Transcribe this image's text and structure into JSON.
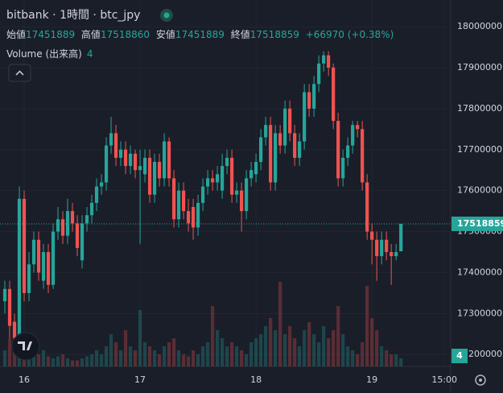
{
  "chart_data": {
    "type": "candlestick",
    "title": "bitbank · 1時間 · btc_jpy",
    "ohlc_names": {
      "open": "始値",
      "high": "高値",
      "low": "安値",
      "close": "終値"
    },
    "change": "+66970 (+0.38%)",
    "volume_name": "Volume (出来高)",
    "x": [
      -4,
      -3,
      -2,
      -1,
      0,
      1,
      2,
      3,
      4,
      5,
      6,
      7,
      8,
      9,
      10,
      11,
      12,
      13,
      14,
      15,
      16,
      17,
      18,
      19,
      20,
      21,
      22,
      23,
      24,
      25,
      26,
      27,
      28,
      29,
      30,
      31,
      32,
      33,
      34,
      35,
      36,
      37,
      38,
      39,
      40,
      41,
      42,
      43,
      44,
      45,
      46,
      47,
      48,
      49,
      50,
      51,
      52,
      53,
      54,
      55,
      56,
      57,
      58,
      59,
      60,
      61,
      62,
      63,
      64,
      65,
      66,
      67,
      68,
      69,
      70,
      71,
      72,
      73,
      74,
      75,
      76,
      77,
      78
    ],
    "open": [
      17330000,
      17360000,
      17280000,
      17240000,
      17580000,
      17350000,
      17420000,
      17480000,
      17380000,
      17450000,
      17370000,
      17500000,
      17530000,
      17490000,
      17550000,
      17520000,
      17430000,
      17520000,
      17540000,
      17570000,
      17610000,
      17620000,
      17710000,
      17740000,
      17680000,
      17700000,
      17660000,
      17690000,
      17650000,
      17640000,
      17680000,
      17590000,
      17670000,
      17630000,
      17720000,
      17630000,
      17530000,
      17600000,
      17550000,
      17560000,
      17510000,
      17570000,
      17610000,
      17630000,
      17620000,
      17600000,
      17660000,
      17680000,
      17590000,
      17600000,
      17550000,
      17630000,
      17640000,
      17670000,
      17730000,
      17760000,
      17620000,
      17740000,
      17710000,
      17800000,
      17740000,
      17680000,
      17720000,
      17840000,
      17800000,
      17860000,
      17910000,
      17930000,
      17900000,
      17770000,
      17630000,
      17680000,
      17710000,
      17760000,
      17750000,
      17620000,
      17500000,
      17480000,
      17440000,
      17480000,
      17450000,
      17440000,
      17451889
    ],
    "high": [
      17380000,
      17380000,
      17300000,
      17610000,
      17600000,
      17450000,
      17500000,
      17500000,
      17470000,
      17470000,
      17520000,
      17560000,
      17550000,
      17580000,
      17570000,
      17540000,
      17540000,
      17560000,
      17590000,
      17630000,
      17640000,
      17730000,
      17780000,
      17760000,
      17720000,
      17720000,
      17710000,
      17700000,
      17700000,
      17700000,
      17700000,
      17690000,
      17690000,
      17740000,
      17730000,
      17650000,
      17620000,
      17620000,
      17580000,
      17580000,
      17590000,
      17630000,
      17650000,
      17650000,
      17660000,
      17690000,
      17700000,
      17700000,
      17620000,
      17620000,
      17650000,
      17670000,
      17690000,
      17750000,
      17780000,
      17780000,
      17760000,
      17760000,
      17820000,
      17820000,
      17760000,
      17740000,
      17860000,
      17860000,
      17880000,
      17930000,
      17940000,
      17940000,
      17910000,
      17790000,
      17700000,
      17730000,
      17770000,
      17770000,
      17770000,
      17640000,
      17520000,
      17500000,
      17500000,
      17500000,
      17470000,
      17470000,
      17518860
    ],
    "low": [
      17300000,
      17240000,
      17200000,
      17220000,
      17330000,
      17330000,
      17400000,
      17380000,
      17360000,
      17350000,
      17360000,
      17480000,
      17470000,
      17470000,
      17500000,
      17440000,
      17410000,
      17500000,
      17520000,
      17550000,
      17590000,
      17600000,
      17690000,
      17660000,
      17660000,
      17640000,
      17640000,
      17630000,
      17470000,
      17620000,
      17570000,
      17570000,
      17610000,
      17610000,
      17610000,
      17510000,
      17510000,
      17530000,
      17500000,
      17480000,
      17490000,
      17550000,
      17590000,
      17600000,
      17600000,
      17580000,
      17640000,
      17570000,
      17570000,
      17500000,
      17530000,
      17610000,
      17620000,
      17650000,
      17710000,
      17600000,
      17600000,
      17690000,
      17690000,
      17720000,
      17660000,
      17660000,
      17700000,
      17780000,
      17780000,
      17840000,
      17890000,
      17880000,
      17750000,
      17610000,
      17610000,
      17660000,
      17690000,
      17730000,
      17600000,
      17480000,
      17420000,
      17380000,
      17420000,
      17430000,
      17370000,
      17430000,
      17451889
    ],
    "close": [
      17360000,
      17270000,
      17240000,
      17580000,
      17350000,
      17420000,
      17480000,
      17400000,
      17450000,
      17370000,
      17500000,
      17530000,
      17490000,
      17550000,
      17520000,
      17460000,
      17520000,
      17540000,
      17570000,
      17610000,
      17620000,
      17710000,
      17740000,
      17680000,
      17700000,
      17660000,
      17690000,
      17650000,
      17660000,
      17680000,
      17590000,
      17670000,
      17630000,
      17720000,
      17630000,
      17530000,
      17600000,
      17550000,
      17520000,
      17510000,
      17570000,
      17610000,
      17630000,
      17620000,
      17640000,
      17660000,
      17680000,
      17590000,
      17600000,
      17550000,
      17630000,
      17650000,
      17670000,
      17730000,
      17760000,
      17620000,
      17740000,
      17710000,
      17800000,
      17740000,
      17680000,
      17720000,
      17840000,
      17800000,
      17860000,
      17910000,
      17930000,
      17900000,
      17770000,
      17630000,
      17680000,
      17710000,
      17760000,
      17750000,
      17620000,
      17500000,
      17480000,
      17440000,
      17480000,
      17450000,
      17440000,
      17450000,
      17518859
    ],
    "volume": [
      8,
      14,
      12,
      20,
      10,
      6,
      5,
      6,
      8,
      5,
      4,
      5,
      6,
      4,
      3,
      3,
      4,
      5,
      6,
      8,
      6,
      10,
      16,
      12,
      8,
      18,
      10,
      8,
      28,
      12,
      10,
      8,
      6,
      10,
      12,
      14,
      8,
      6,
      5,
      8,
      6,
      10,
      12,
      30,
      18,
      14,
      10,
      12,
      10,
      8,
      6,
      12,
      14,
      16,
      20,
      24,
      18,
      42,
      16,
      20,
      14,
      10,
      18,
      22,
      16,
      12,
      20,
      14,
      18,
      30,
      16,
      10,
      8,
      6,
      12,
      40,
      24,
      18,
      10,
      8,
      6,
      6,
      4
    ],
    "up_color": "#26a69a",
    "down_color": "#ef5350",
    "xlim": [
      -5,
      88.3
    ],
    "xticks": [
      {
        "value": 0,
        "label": "16"
      },
      {
        "value": 24,
        "label": "17"
      },
      {
        "value": 48,
        "label": "18"
      },
      {
        "value": 72,
        "label": "19"
      },
      {
        "value": 87,
        "label": "15:00"
      }
    ],
    "ylim": [
      17171000,
      18065000
    ],
    "yticks": [
      17200000,
      17300000,
      17400000,
      17500000,
      17600000,
      17700000,
      17800000,
      17900000,
      18000000
    ],
    "vlim": [
      0,
      60
    ],
    "grid": true
  }
}
